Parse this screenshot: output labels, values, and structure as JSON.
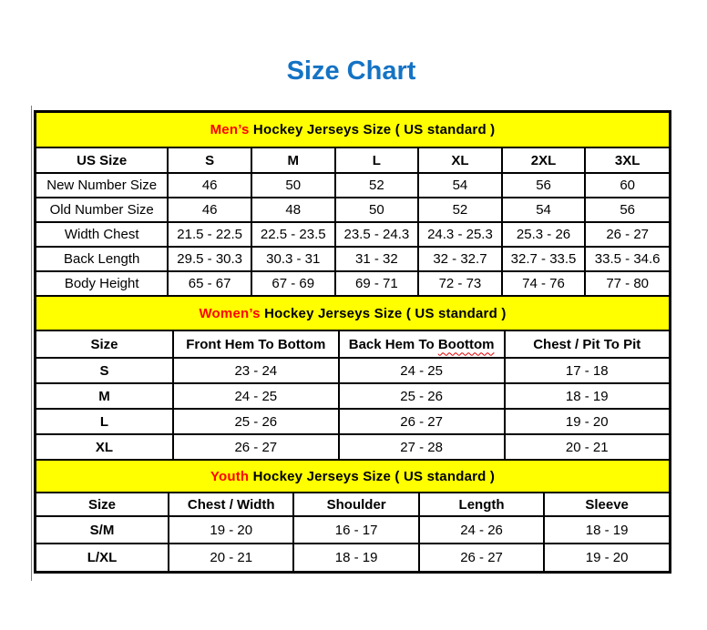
{
  "page": {
    "title": "Size Chart"
  },
  "colors": {
    "title_blue": "#1473C4",
    "band_yellow": "#FFFF00",
    "accent_red": "#FF0000",
    "border_black": "#000000",
    "squiggle_red": "#E00000"
  },
  "tables": [
    {
      "id": "mens",
      "band": {
        "highlight": "Men’s",
        "rest": " Hockey Jerseys Size ( US standard )"
      },
      "columns": [
        "US Size",
        "S",
        "M",
        "L",
        "XL",
        "2XL",
        "3XL"
      ],
      "rows": [
        {
          "label": "New Number Size",
          "values": [
            "46",
            "50",
            "52",
            "54",
            "56",
            "60"
          ]
        },
        {
          "label": "Old Number Size",
          "values": [
            "46",
            "48",
            "50",
            "52",
            "54",
            "56"
          ]
        },
        {
          "label": "Width Chest",
          "values": [
            "21.5 - 22.5",
            "22.5 - 23.5",
            "23.5 - 24.3",
            "24.3 - 25.3",
            "25.3 - 26",
            "26 - 27"
          ]
        },
        {
          "label": "Back Length",
          "values": [
            "29.5 - 30.3",
            "30.3 - 31",
            "31 - 32",
            "32 - 32.7",
            "32.7 - 33.5",
            "33.5 - 34.6"
          ]
        },
        {
          "label": "Body Height",
          "values": [
            "65 - 67",
            "67 - 69",
            "69 - 71",
            "72 - 73",
            "74 - 76",
            "77 - 80"
          ]
        }
      ]
    },
    {
      "id": "womens",
      "band": {
        "highlight": "Women’s",
        "rest": " Hockey Jerseys Size ( US standard )"
      },
      "columns": [
        "Size",
        "Front Hem To Bottom",
        {
          "pre": "Back Hem To ",
          "mark": "Boottom"
        },
        "Chest / Pit To Pit"
      ],
      "rows": [
        {
          "label": "S",
          "values": [
            "23 - 24",
            "24 - 25",
            "17 - 18"
          ]
        },
        {
          "label": "M",
          "values": [
            "24 - 25",
            "25 - 26",
            "18 - 19"
          ]
        },
        {
          "label": "L",
          "values": [
            "25 - 26",
            "26 - 27",
            "19 - 20"
          ]
        },
        {
          "label": "XL",
          "values": [
            "26 - 27",
            "27 - 28",
            "20 - 21"
          ]
        }
      ]
    },
    {
      "id": "youth",
      "band": {
        "highlight": "Youth",
        "rest": " Hockey Jerseys Size ( US standard )"
      },
      "columns": [
        "Size",
        "Chest / Width",
        "Shoulder",
        "Length",
        "Sleeve"
      ],
      "rows": [
        {
          "label": "S/M",
          "values": [
            "19 - 20",
            "16 - 17",
            "24 - 26",
            "18 - 19"
          ]
        },
        {
          "label": "L/XL",
          "values": [
            "20 - 21",
            "18 - 19",
            "26 - 27",
            "19 - 20"
          ]
        }
      ]
    }
  ]
}
